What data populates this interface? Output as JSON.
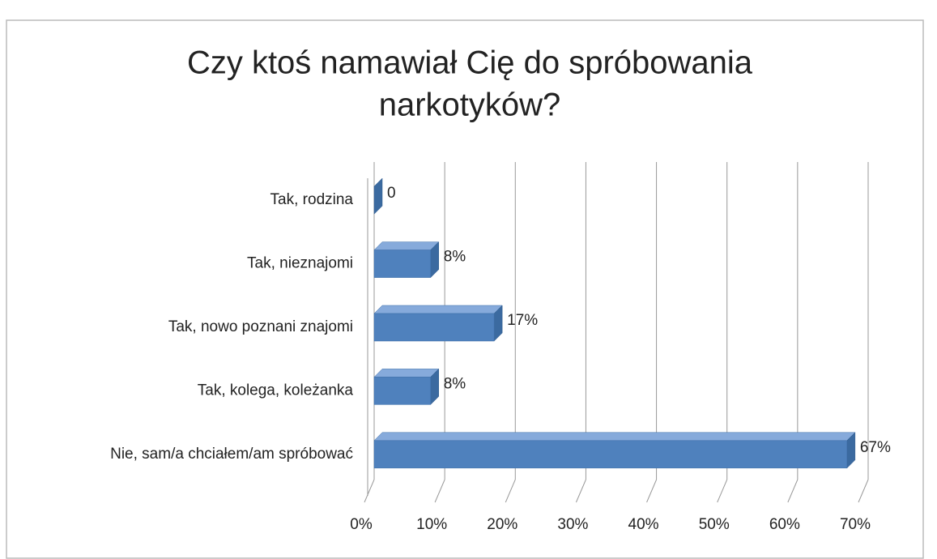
{
  "chart_data": {
    "type": "bar",
    "orientation": "horizontal",
    "title": [
      "Czy ktoś namawiał Cię do spróbowania",
      "narkotyków?"
    ],
    "categories": [
      "Tak, rodzina",
      "Tak, nieznajomi",
      "Tak, nowo poznani znajomi",
      "Tak, kolega, koleżanka",
      "Nie, sam/a chciałem/am spróbować"
    ],
    "values": [
      0,
      8,
      17,
      8,
      67
    ],
    "value_labels": [
      "0",
      "8%",
      "17%",
      "8%",
      "67%"
    ],
    "color": "#4f81bd",
    "xlim": [
      0,
      70
    ],
    "xticks": [
      {
        "value": 0,
        "label": "0%"
      },
      {
        "value": 10,
        "label": "10%"
      },
      {
        "value": 20,
        "label": "20%"
      },
      {
        "value": 30,
        "label": "30%"
      },
      {
        "value": 40,
        "label": "40%"
      },
      {
        "value": 50,
        "label": "50%"
      },
      {
        "value": 60,
        "label": "60%"
      },
      {
        "value": 70,
        "label": "70%"
      }
    ],
    "grid": true
  }
}
